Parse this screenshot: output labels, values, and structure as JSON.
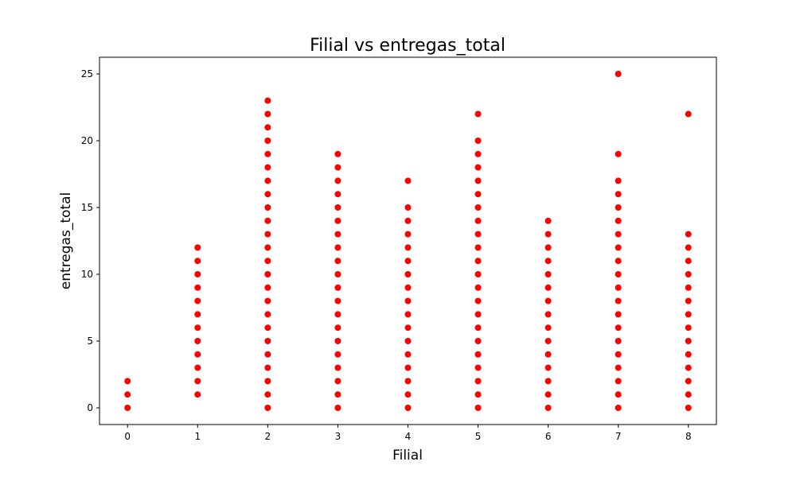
{
  "chart_data": {
    "type": "scatter",
    "title": "Filial vs entregas_total",
    "xlabel": "Filial",
    "ylabel": "entregas_total",
    "xlim": [
      -0.4,
      8.4
    ],
    "ylim": [
      -1.25,
      26.25
    ],
    "xticks": [
      0,
      1,
      2,
      3,
      4,
      5,
      6,
      7,
      8
    ],
    "yticks": [
      0,
      5,
      10,
      15,
      20,
      25
    ],
    "grid": false,
    "marker_color": "#ff0000",
    "points": [
      {
        "x": 0,
        "ys": [
          0,
          1,
          2
        ]
      },
      {
        "x": 1,
        "ys": [
          1,
          2,
          3,
          4,
          5,
          6,
          7,
          8,
          9,
          10,
          11,
          12
        ]
      },
      {
        "x": 2,
        "ys": [
          0,
          1,
          2,
          3,
          4,
          5,
          6,
          7,
          8,
          9,
          10,
          11,
          12,
          13,
          14,
          15,
          16,
          17,
          18,
          19,
          20,
          21,
          22,
          23
        ]
      },
      {
        "x": 3,
        "ys": [
          0,
          1,
          2,
          3,
          4,
          5,
          6,
          7,
          8,
          9,
          10,
          11,
          12,
          13,
          14,
          15,
          16,
          17,
          18,
          19
        ]
      },
      {
        "x": 4,
        "ys": [
          0,
          1,
          2,
          3,
          4,
          5,
          6,
          7,
          8,
          9,
          10,
          11,
          12,
          13,
          14,
          15,
          17
        ]
      },
      {
        "x": 5,
        "ys": [
          0,
          1,
          2,
          3,
          4,
          5,
          6,
          7,
          8,
          9,
          10,
          11,
          12,
          13,
          14,
          15,
          16,
          17,
          18,
          19,
          20,
          22
        ]
      },
      {
        "x": 6,
        "ys": [
          0,
          1,
          2,
          3,
          4,
          5,
          6,
          7,
          8,
          9,
          10,
          11,
          12,
          13,
          14
        ]
      },
      {
        "x": 7,
        "ys": [
          0,
          1,
          2,
          3,
          4,
          5,
          6,
          7,
          8,
          9,
          10,
          11,
          12,
          13,
          14,
          15,
          16,
          17,
          19,
          25
        ]
      },
      {
        "x": 8,
        "ys": [
          0,
          1,
          2,
          3,
          4,
          5,
          6,
          7,
          8,
          9,
          10,
          11,
          12,
          13,
          22
        ]
      }
    ]
  }
}
